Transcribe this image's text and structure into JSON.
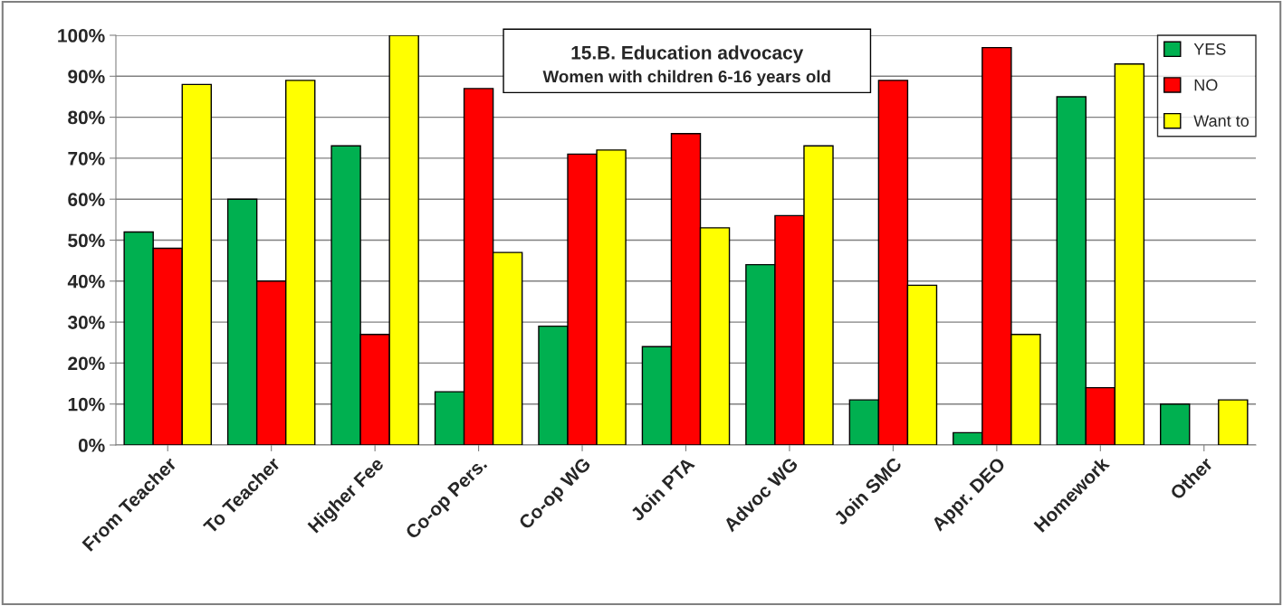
{
  "chart_data": {
    "type": "bar",
    "title": "15.B. Education advocacy",
    "subtitle": "Women with children 6-16 years old",
    "categories": [
      "From Teacher",
      "To Teacher",
      "Higher Fee",
      "Co-op Pers.",
      "Co-op WG",
      "Join PTA",
      "Advoc WG",
      "Join SMC",
      "Appr. DEO",
      "Homework",
      "Other"
    ],
    "series": [
      {
        "name": "YES",
        "color": "#00b050",
        "values": [
          52,
          60,
          73,
          13,
          29,
          24,
          44,
          11,
          3,
          85,
          10
        ]
      },
      {
        "name": "NO",
        "color": "#ff0000",
        "values": [
          48,
          40,
          27,
          87,
          71,
          76,
          56,
          89,
          97,
          14,
          null
        ]
      },
      {
        "name": "Want to",
        "color": "#ffff00",
        "values": [
          88,
          89,
          100,
          47,
          72,
          53,
          73,
          39,
          27,
          93,
          11
        ]
      }
    ],
    "ylim": [
      0,
      100
    ],
    "yticks": [
      {
        "value": 0,
        "label": "0%"
      },
      {
        "value": 10,
        "label": "10%"
      },
      {
        "value": 20,
        "label": "20%"
      },
      {
        "value": 30,
        "label": "30%"
      },
      {
        "value": 40,
        "label": "40%"
      },
      {
        "value": 50,
        "label": "50%"
      },
      {
        "value": 60,
        "label": "60%"
      },
      {
        "value": 70,
        "label": "70%"
      },
      {
        "value": 80,
        "label": "80%"
      },
      {
        "value": 90,
        "label": "90%"
      },
      {
        "value": 100,
        "label": "100%"
      }
    ],
    "grid": "y",
    "legend": "top right"
  }
}
